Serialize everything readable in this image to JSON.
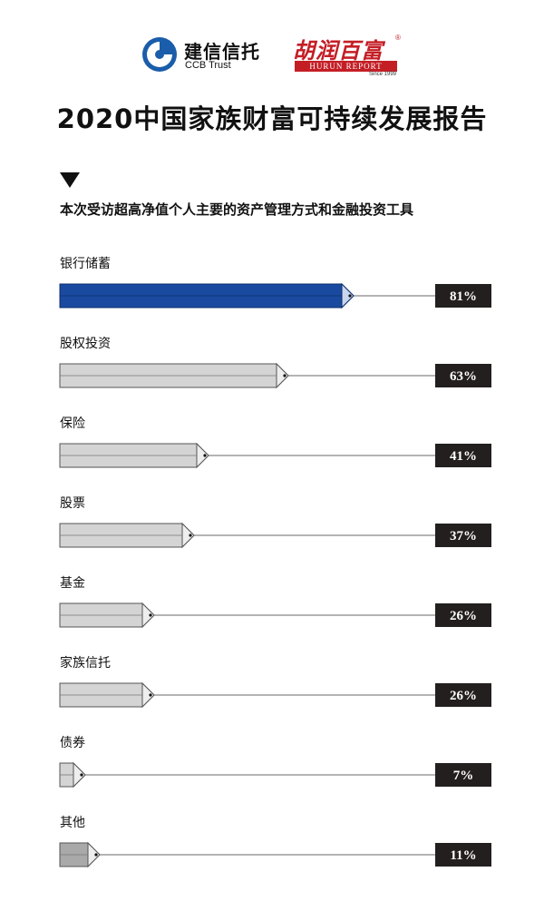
{
  "header": {
    "ccb_name": "建信信托",
    "ccb_en": "CCB Trust",
    "hurun_name": "胡润百富",
    "hurun_reg": "®",
    "hurun_report": "HURUN REPORT",
    "hurun_since": "Since 1999"
  },
  "colors": {
    "highlight_bar": "#1a4aa0",
    "default_bar": "#d4d4d4",
    "last_bar": "#a9a9a9",
    "value_box": "#231f1e",
    "ccb_blue": "#1a5dab",
    "hurun_red": "#c41e25"
  },
  "chart_data": {
    "type": "bar",
    "orientation": "horizontal",
    "title": "2020中国家族财富可持续发展报告",
    "subtitle": "本次受访超高净值个人主要的资产管理方式和金融投资工具",
    "categories": [
      "银行储蓄",
      "股权投资",
      "保险",
      "股票",
      "基金",
      "家族信托",
      "债券",
      "其他"
    ],
    "values": [
      81,
      63,
      41,
      37,
      26,
      26,
      7,
      11
    ],
    "value_labels": [
      "81%",
      "63%",
      "41%",
      "37%",
      "26%",
      "26%",
      "7%",
      "11%"
    ],
    "unit": "%",
    "xlim": [
      0,
      100
    ],
    "highlight_index": 0,
    "grid": false,
    "legend": "none"
  }
}
